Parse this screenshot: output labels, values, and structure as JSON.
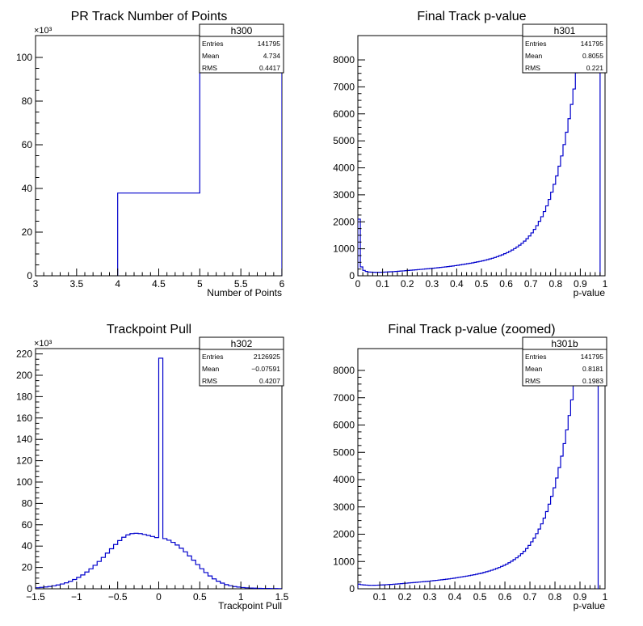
{
  "chart_data": [
    {
      "type": "histogram",
      "title": "PR Track Number of Points",
      "xlabel": "Number of Points",
      "ylabel": "",
      "y_multiplier_label": "×10³",
      "xlim": [
        3,
        6
      ],
      "ylim": [
        0,
        110000
      ],
      "x_ticks": [
        3,
        3.5,
        4,
        4.5,
        5,
        5.5,
        6
      ],
      "x_tick_labels": [
        "3",
        "3.5",
        "4",
        "4.5",
        "5",
        "5.5",
        "6"
      ],
      "y_ticks": [
        0,
        20000,
        40000,
        60000,
        80000,
        100000
      ],
      "y_tick_labels": [
        "0",
        "20",
        "40",
        "60",
        "80",
        "100"
      ],
      "bins": {
        "edges": [
          4,
          5,
          6
        ],
        "values": [
          37900,
          104000
        ]
      },
      "stats": {
        "name": "h300",
        "rows": [
          {
            "label": "Entries",
            "value": "141795"
          },
          {
            "label": "Mean",
            "value": "4.734"
          },
          {
            "label": "RMS",
            "value": "0.4417"
          }
        ]
      }
    },
    {
      "type": "histogram",
      "title": "Final Track p-value",
      "xlabel": "p-value",
      "ylabel": "",
      "y_multiplier_label": "",
      "xlim": [
        0,
        1
      ],
      "ylim": [
        0,
        8900
      ],
      "x_ticks": [
        0,
        0.1,
        0.2,
        0.3,
        0.4,
        0.5,
        0.6,
        0.7,
        0.8,
        0.9,
        1
      ],
      "x_tick_labels": [
        "0",
        "0.1",
        "0.2",
        "0.3",
        "0.4",
        "0.5",
        "0.6",
        "0.7",
        "0.8",
        "0.9",
        "1"
      ],
      "y_ticks": [
        0,
        1000,
        2000,
        3000,
        4000,
        5000,
        6000,
        7000,
        8000
      ],
      "y_tick_labels": [
        "0",
        "1000",
        "2000",
        "3000",
        "4000",
        "5000",
        "6000",
        "7000",
        "8000"
      ],
      "bins": {
        "edges": [
          0,
          0.01,
          0.02,
          0.03,
          0.04,
          0.05,
          0.06,
          0.07,
          0.08,
          0.09,
          0.1,
          0.11,
          0.12,
          0.13,
          0.14,
          0.15,
          0.16,
          0.17,
          0.18,
          0.19,
          0.2,
          0.21,
          0.22,
          0.23,
          0.24,
          0.25,
          0.26,
          0.27,
          0.28,
          0.29,
          0.3,
          0.31,
          0.32,
          0.33,
          0.34,
          0.35,
          0.36,
          0.37,
          0.38,
          0.39,
          0.4,
          0.41,
          0.42,
          0.43,
          0.44,
          0.45,
          0.46,
          0.47,
          0.48,
          0.49,
          0.5,
          0.51,
          0.52,
          0.53,
          0.54,
          0.55,
          0.56,
          0.57,
          0.58,
          0.59,
          0.6,
          0.61,
          0.62,
          0.63,
          0.64,
          0.65,
          0.66,
          0.67,
          0.68,
          0.69,
          0.7,
          0.71,
          0.72,
          0.73,
          0.74,
          0.75,
          0.76,
          0.77,
          0.78,
          0.79,
          0.8,
          0.81,
          0.82,
          0.83,
          0.84,
          0.85,
          0.86,
          0.87,
          0.88,
          0.89,
          0.9,
          0.91,
          0.92,
          0.93,
          0.94,
          0.95,
          0.96,
          0.97,
          0.98
        ],
        "values": [
          2100,
          330,
          200,
          160,
          140,
          135,
          130,
          128,
          130,
          132,
          135,
          140,
          145,
          150,
          155,
          160,
          168,
          175,
          182,
          190,
          198,
          206,
          214,
          222,
          230,
          238,
          246,
          254,
          262,
          270,
          280,
          290,
          300,
          310,
          320,
          330,
          340,
          352,
          364,
          376,
          390,
          405,
          420,
          435,
          450,
          465,
          480,
          498,
          516,
          534,
          555,
          575,
          600,
          625,
          650,
          680,
          710,
          745,
          780,
          820,
          860,
          905,
          955,
          1010,
          1070,
          1135,
          1205,
          1285,
          1375,
          1475,
          1590,
          1720,
          1860,
          2020,
          2190,
          2380,
          2590,
          2830,
          3100,
          3390,
          3700,
          4060,
          4440,
          4860,
          5320,
          5820,
          6350,
          6920,
          7520,
          8150,
          8800,
          9500,
          10200,
          10950,
          11700,
          12500,
          13300,
          14100
        ]
      },
      "stats": {
        "name": "h301",
        "rows": [
          {
            "label": "Entries",
            "value": "141795"
          },
          {
            "label": "Mean",
            "value": "0.8055"
          },
          {
            "label": "RMS",
            "value": "0.221"
          }
        ]
      }
    },
    {
      "type": "histogram",
      "title": "Trackpoint Pull",
      "xlabel": "Trackpoint Pull",
      "ylabel": "",
      "y_multiplier_label": "×10³",
      "xlim": [
        -1.5,
        1.5
      ],
      "ylim": [
        0,
        225000
      ],
      "x_ticks": [
        -1.5,
        -1,
        -0.5,
        0,
        0.5,
        1,
        1.5
      ],
      "x_tick_labels": [
        "−1.5",
        "−1",
        "−0.5",
        "0",
        "0.5",
        "1",
        "1.5"
      ],
      "y_ticks": [
        0,
        20000,
        40000,
        60000,
        80000,
        100000,
        120000,
        140000,
        160000,
        180000,
        200000,
        220000
      ],
      "y_tick_labels": [
        "0",
        "20",
        "40",
        "60",
        "80",
        "100",
        "120",
        "140",
        "160",
        "180",
        "200",
        "220"
      ],
      "bins": {
        "edges": [
          -1.5,
          -1.45,
          -1.4,
          -1.35,
          -1.3,
          -1.25,
          -1.2,
          -1.15,
          -1.1,
          -1.05,
          -1.0,
          -0.95,
          -0.9,
          -0.85,
          -0.8,
          -0.75,
          -0.7,
          -0.65,
          -0.6,
          -0.55,
          -0.5,
          -0.45,
          -0.4,
          -0.35,
          -0.3,
          -0.25,
          -0.2,
          -0.15,
          -0.1,
          -0.05,
          0.0,
          0.05,
          0.1,
          0.15,
          0.2,
          0.25,
          0.3,
          0.35,
          0.4,
          0.45,
          0.5,
          0.55,
          0.6,
          0.65,
          0.7,
          0.75,
          0.8,
          0.85,
          0.9,
          0.95,
          1.0,
          1.05,
          1.1,
          1.15,
          1.2,
          1.25,
          1.3,
          1.35,
          1.4,
          1.45,
          1.5
        ],
        "values": [
          1000,
          1300,
          1700,
          2200,
          2800,
          3600,
          4500,
          5600,
          7000,
          8700,
          10700,
          13000,
          15700,
          18700,
          22000,
          25600,
          29400,
          33400,
          37500,
          41500,
          45200,
          48300,
          50500,
          51700,
          52000,
          51700,
          50900,
          50000,
          49000,
          48000,
          216000,
          47000,
          45500,
          43500,
          41000,
          38000,
          34600,
          30800,
          26800,
          22700,
          18800,
          15200,
          12000,
          9300,
          7100,
          5300,
          3900,
          2900,
          2100,
          1600,
          1200,
          900,
          700,
          550,
          430,
          340,
          270,
          210,
          170,
          140
        ]
      },
      "stats": {
        "name": "h302",
        "rows": [
          {
            "label": "Entries",
            "value": "2126925"
          },
          {
            "label": "Mean",
            "value": "−0.07591"
          },
          {
            "label": "RMS",
            "value": "0.4207"
          }
        ]
      }
    },
    {
      "type": "histogram",
      "title": "Final Track p-value (zoomed)",
      "xlabel": "p-value",
      "ylabel": "",
      "y_multiplier_label": "",
      "xlim": [
        0.0125,
        1
      ],
      "ylim": [
        0,
        8800
      ],
      "x_ticks": [
        0.1,
        0.2,
        0.3,
        0.4,
        0.5,
        0.6,
        0.7,
        0.8,
        0.9,
        1
      ],
      "x_tick_labels": [
        "0.1",
        "0.2",
        "0.3",
        "0.4",
        "0.5",
        "0.6",
        "0.7",
        "0.8",
        "0.9",
        "1"
      ],
      "y_ticks": [
        0,
        1000,
        2000,
        3000,
        4000,
        5000,
        6000,
        7000,
        8000
      ],
      "y_tick_labels": [
        "0",
        "1000",
        "2000",
        "3000",
        "4000",
        "5000",
        "6000",
        "7000",
        "8000"
      ],
      "bins": {
        "edges": [
          0.0125,
          0.0225,
          0.0325,
          0.0425,
          0.0525,
          0.0625,
          0.0725,
          0.0825,
          0.0925,
          0.1025,
          0.1125,
          0.1225,
          0.1325,
          0.1425,
          0.1525,
          0.1625,
          0.1725,
          0.1825,
          0.1925,
          0.2025,
          0.2125,
          0.2225,
          0.2325,
          0.2425,
          0.2525,
          0.2625,
          0.2725,
          0.2825,
          0.2925,
          0.3025,
          0.3125,
          0.3225,
          0.3325,
          0.3425,
          0.3525,
          0.3625,
          0.3725,
          0.3825,
          0.3925,
          0.4025,
          0.4125,
          0.4225,
          0.4325,
          0.4425,
          0.4525,
          0.4625,
          0.4725,
          0.4825,
          0.4925,
          0.5025,
          0.5125,
          0.5225,
          0.5325,
          0.5425,
          0.5525,
          0.5625,
          0.5725,
          0.5825,
          0.5925,
          0.6025,
          0.6125,
          0.6225,
          0.6325,
          0.6425,
          0.6525,
          0.6625,
          0.6725,
          0.6825,
          0.6925,
          0.7025,
          0.7125,
          0.7225,
          0.7325,
          0.7425,
          0.7525,
          0.7625,
          0.7725,
          0.7825,
          0.7925,
          0.8025,
          0.8125,
          0.8225,
          0.8325,
          0.8425,
          0.8525,
          0.8625,
          0.8725,
          0.8825,
          0.8925,
          0.9025,
          0.9125,
          0.9225,
          0.9325,
          0.9425,
          0.9525,
          0.9625,
          0.9725
        ],
        "values": [
          170,
          150,
          140,
          135,
          130,
          128,
          130,
          132,
          135,
          140,
          145,
          150,
          155,
          160,
          168,
          175,
          182,
          190,
          198,
          206,
          214,
          222,
          230,
          238,
          246,
          254,
          262,
          270,
          280,
          290,
          300,
          310,
          320,
          330,
          340,
          352,
          364,
          376,
          390,
          405,
          420,
          435,
          450,
          465,
          480,
          498,
          516,
          534,
          555,
          575,
          600,
          625,
          650,
          680,
          710,
          745,
          780,
          820,
          860,
          905,
          955,
          1010,
          1070,
          1135,
          1205,
          1285,
          1375,
          1475,
          1590,
          1720,
          1860,
          2020,
          2190,
          2380,
          2590,
          2830,
          3100,
          3390,
          3700,
          4060,
          4440,
          4860,
          5320,
          5820,
          6350,
          6920,
          7520,
          8150,
          8800,
          9500,
          10200,
          10950,
          11700,
          12500,
          13300,
          14100
        ]
      },
      "stats": {
        "name": "h301b",
        "rows": [
          {
            "label": "Entries",
            "value": "141795"
          },
          {
            "label": "Mean",
            "value": "0.8181"
          },
          {
            "label": "RMS",
            "value": "0.1983"
          }
        ]
      }
    }
  ],
  "colors": {
    "histogram_line": "#0000cc",
    "frame": "#000000",
    "background": "#ffffff"
  }
}
